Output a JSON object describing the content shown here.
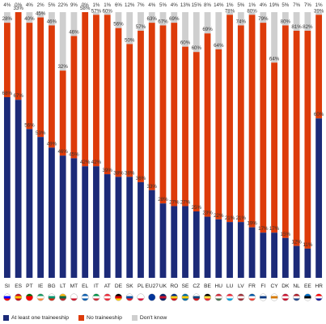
{
  "chart_data": {
    "type": "bar",
    "stacked": true,
    "ylim": [
      0,
      100
    ],
    "categories": [
      "SI",
      "ES",
      "PT",
      "IE",
      "BG",
      "LT",
      "MT",
      "EL",
      "IT",
      "AT",
      "DE",
      "SK",
      "PL",
      "EU27",
      "UK",
      "RO",
      "SE",
      "CZ",
      "BE",
      "HU",
      "LU",
      "LV",
      "FR",
      "FI",
      "CY",
      "DK",
      "NL",
      "EE",
      "HR"
    ],
    "series": [
      {
        "name": "At least one traineeship",
        "color": "#1c2a78",
        "values": [
          68,
          67,
          56,
          53,
          49,
          46,
          45,
          42,
          42,
          39,
          38,
          38,
          36,
          33,
          28,
          27,
          27,
          25,
          23,
          22,
          21,
          21,
          19,
          17,
          17,
          15,
          12,
          11,
          60
        ]
      },
      {
        "name": "No traineeship",
        "color": "#dd3b0a",
        "values": [
          28,
          33,
          40,
          45,
          46,
          32,
          46,
          58,
          57,
          60,
          56,
          50,
          57,
          63,
          67,
          69,
          60,
          60,
          69,
          64,
          78,
          74,
          80,
          79,
          64,
          80,
          81,
          82,
          39
        ]
      },
      {
        "name": "Don't know",
        "color": "#cfcfcf",
        "values": [
          4,
          0,
          4,
          2,
          5,
          22,
          9,
          0,
          1,
          1,
          6,
          12,
          7,
          4,
          5,
          4,
          13,
          15,
          8,
          14,
          1,
          5,
          1,
          4,
          19,
          5,
          7,
          7,
          1
        ]
      }
    ],
    "legend_position": "bottom-left",
    "grid": false
  },
  "flag_colors": {
    "SI": [
      "#ffffff",
      "#0000ff",
      "#ff0000"
    ],
    "ES": [
      "#c60b1e",
      "#ffc400",
      "#c60b1e"
    ],
    "PT": [
      "#006600",
      "#ff0000",
      "#ff0000"
    ],
    "IE": [
      "#169b62",
      "#ffffff",
      "#ff883e"
    ],
    "BG": [
      "#ffffff",
      "#00966e",
      "#d62612"
    ],
    "LT": [
      "#fdb913",
      "#006a44",
      "#c1272d"
    ],
    "MT": [
      "#ffffff",
      "#ffffff",
      "#cf142b"
    ],
    "EL": [
      "#0d5eaf",
      "#ffffff",
      "#0d5eaf"
    ],
    "IT": [
      "#009246",
      "#ffffff",
      "#ce2b37"
    ],
    "AT": [
      "#ed2939",
      "#ffffff",
      "#ed2939"
    ],
    "DE": [
      "#000000",
      "#dd0000",
      "#ffce00"
    ],
    "SK": [
      "#ffffff",
      "#0b4ea2",
      "#ee1c25"
    ],
    "PL": [
      "#ffffff",
      "#ffffff",
      "#dc143c"
    ],
    "EU27": [
      "#003399",
      "#003399",
      "#003399"
    ],
    "UK": [
      "#012169",
      "#c8102e",
      "#012169"
    ],
    "RO": [
      "#002b7f",
      "#fcd116",
      "#ce1126"
    ],
    "SE": [
      "#006aa7",
      "#fecc00",
      "#006aa7"
    ],
    "CZ": [
      "#ffffff",
      "#11457e",
      "#d7141a"
    ],
    "BE": [
      "#000000",
      "#fae042",
      "#ed2939"
    ],
    "HU": [
      "#ce2939",
      "#ffffff",
      "#477050"
    ],
    "LU": [
      "#ed2939",
      "#ffffff",
      "#00a1de"
    ],
    "LV": [
      "#9e3039",
      "#ffffff",
      "#9e3039"
    ],
    "FR": [
      "#0055a4",
      "#ffffff",
      "#ef4135"
    ],
    "FI": [
      "#ffffff",
      "#003580",
      "#ffffff"
    ],
    "CY": [
      "#ffffff",
      "#d57800",
      "#ffffff"
    ],
    "DK": [
      "#c8102e",
      "#ffffff",
      "#c8102e"
    ],
    "NL": [
      "#ae1c28",
      "#ffffff",
      "#21468b"
    ],
    "EE": [
      "#0072ce",
      "#000000",
      "#ffffff"
    ],
    "HR": [
      "#ff0000",
      "#ffffff",
      "#171796"
    ]
  }
}
